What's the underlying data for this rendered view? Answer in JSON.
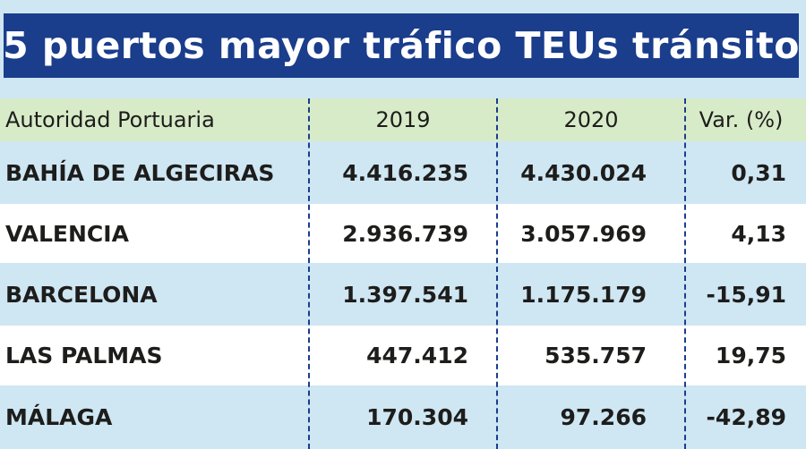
{
  "chart_data": {
    "type": "table",
    "title": "5 puertos mayor tráfico TEUs tránsito",
    "columns": [
      "Autoridad Portuaria",
      "2019",
      "2020",
      "Var. (%)"
    ],
    "rows": [
      [
        "BAHÍA DE ALGECIRAS",
        "4.416.235",
        "4.430.024",
        "0,31"
      ],
      [
        "VALENCIA",
        "2.936.739",
        "3.057.969",
        "4,13"
      ],
      [
        "BARCELONA",
        "1.397.541",
        "1.175.179",
        "-15,91"
      ],
      [
        "LAS PALMAS",
        "447.412",
        "535.757",
        "19,75"
      ],
      [
        "MÁLAGA",
        "170.304",
        "97.266",
        "-42,89"
      ]
    ]
  },
  "colors": {
    "title_background": "#1a3d8c",
    "header_background": "#d8ebc9",
    "row_blue": "#cfe6f3",
    "row_white": "#ffffff",
    "divider": "#1a3d8c"
  }
}
